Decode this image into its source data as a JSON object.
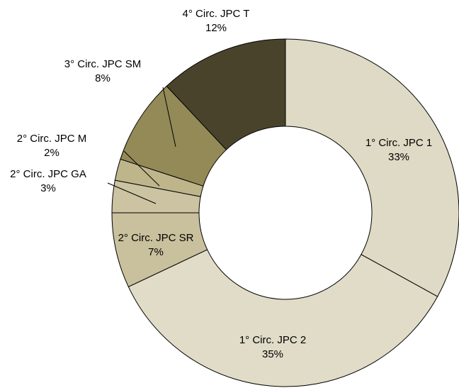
{
  "chart_data": {
    "type": "donut",
    "title": "",
    "slices": [
      {
        "name": "1° Circ. JPC 1",
        "value": 33,
        "pct_label": "33%",
        "color": "#dfdac5"
      },
      {
        "name": "1° Circ. JPC 2",
        "value": 35,
        "pct_label": "35%",
        "color": "#e0dcc8"
      },
      {
        "name": "2° Circ. JPC SR",
        "value": 7,
        "pct_label": "7%",
        "color": "#c9c09d"
      },
      {
        "name": "2° Circ. JPC GA",
        "value": 3,
        "pct_label": "3%",
        "color": "#cbc3a2"
      },
      {
        "name": "2° Circ. JPC M",
        "value": 2,
        "pct_label": "2%",
        "color": "#beb58b"
      },
      {
        "name": "3° Circ. JPC SM",
        "value": 8,
        "pct_label": "8%",
        "color": "#938a57"
      },
      {
        "name": "4° Circ. JPC T",
        "value": 12,
        "pct_label": "12%",
        "color": "#4a432c"
      }
    ],
    "direction": "clockwise",
    "start": "top",
    "legend": "none"
  }
}
